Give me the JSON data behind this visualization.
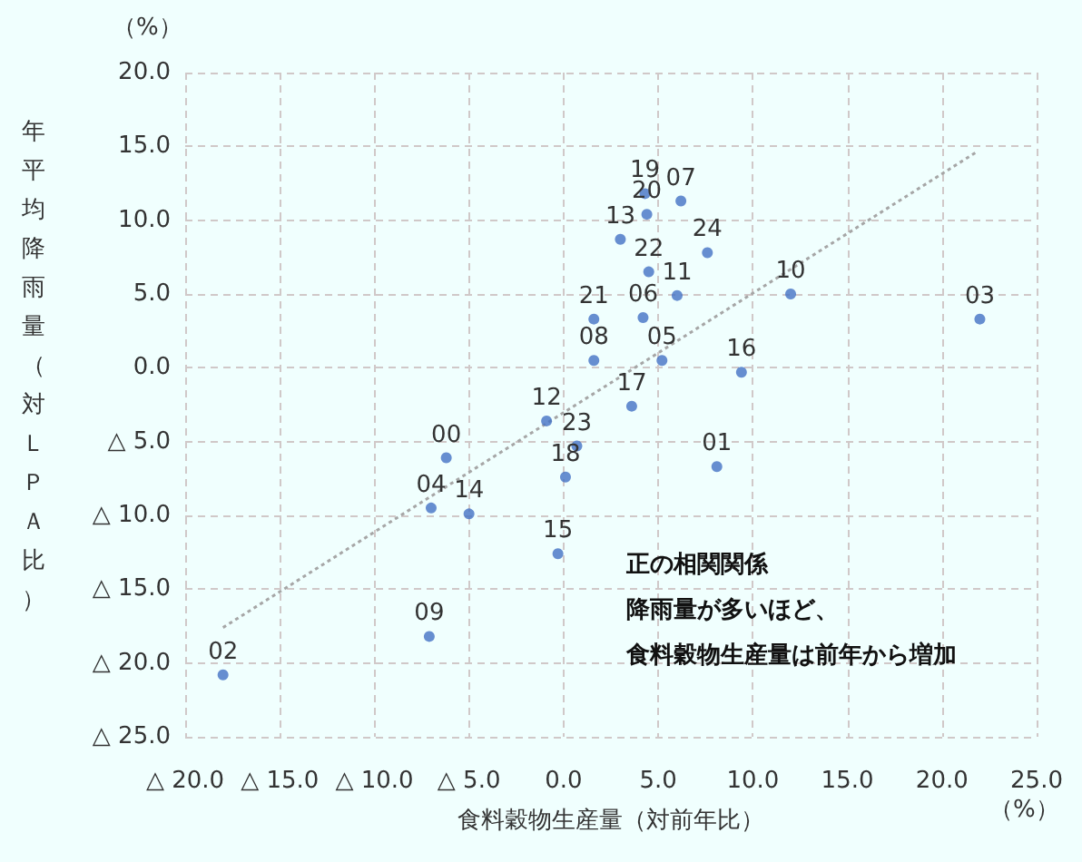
{
  "chart_data": {
    "type": "scatter",
    "xlabel": "食料穀物生産量（対前年比）",
    "ylabel": "年平均降雨量（対ＬＰＡ比）",
    "annotations": [
      "（%）",
      "（%）",
      "正の相関関係",
      "降雨量が多いほど、",
      "食料穀物生産量は前年から増加",
      {
        "text": "19",
        "x": 4.3,
        "y": 11.8
      },
      {
        "text": "20",
        "x": 4.4,
        "y": 10.4
      },
      {
        "text": "07",
        "x": 6.2,
        "y": 11.3
      },
      {
        "text": "13",
        "x": 3.0,
        "y": 8.7
      },
      {
        "text": "24",
        "x": 7.6,
        "y": 7.8
      },
      {
        "text": "22",
        "x": 4.5,
        "y": 6.5
      },
      {
        "text": "11",
        "x": 6.0,
        "y": 4.9
      },
      {
        "text": "10",
        "x": 12.0,
        "y": 5.0
      },
      {
        "text": "03",
        "x": 22.0,
        "y": 3.3
      },
      {
        "text": "21",
        "x": 1.6,
        "y": 3.3
      },
      {
        "text": "06",
        "x": 4.2,
        "y": 3.4
      },
      {
        "text": "08",
        "x": 1.6,
        "y": 0.5
      },
      {
        "text": "05",
        "x": 5.2,
        "y": 0.5
      },
      {
        "text": "16",
        "x": 9.4,
        "y": -0.3
      },
      {
        "text": "17",
        "x": 3.6,
        "y": -2.6
      },
      {
        "text": "01",
        "x": 8.1,
        "y": -6.7
      },
      {
        "text": "23",
        "x": 0.7,
        "y": -5.3
      },
      {
        "text": "18",
        "x": 0.1,
        "y": -7.4
      },
      {
        "text": "15",
        "x": -0.3,
        "y": -12.6
      },
      {
        "text": "12",
        "x": -0.9,
        "y": -3.6
      },
      {
        "text": "00",
        "x": -6.2,
        "y": -6.1
      },
      {
        "text": "04",
        "x": -7.0,
        "y": -9.5
      },
      {
        "text": "14",
        "x": -5.0,
        "y": -9.9
      },
      {
        "text": "09",
        "x": -7.1,
        "y": -18.2
      },
      {
        "text": "02",
        "x": -18.0,
        "y": -20.8
      }
    ],
    "xlim": [
      -20,
      25
    ],
    "xticks": [
      {
        "value": -20,
        "label": "△ 20.0"
      },
      {
        "value": -15,
        "label": "△ 15.0"
      },
      {
        "value": -10,
        "label": "△ 10.0"
      },
      {
        "value": -5,
        "label": "△ 5.0"
      },
      {
        "value": 0,
        "label": "0.0"
      },
      {
        "value": 5,
        "label": "5.0"
      },
      {
        "value": 10,
        "label": "10.0"
      },
      {
        "value": 15,
        "label": "15.0"
      },
      {
        "value": 20,
        "label": "20.0"
      },
      {
        "value": 25,
        "label": "25.0"
      }
    ],
    "ylim": [
      -25,
      20
    ],
    "yticks": [
      {
        "value": -25,
        "label": "△ 25.0"
      },
      {
        "value": -20,
        "label": "△ 20.0"
      },
      {
        "value": -15,
        "label": "△ 15.0"
      },
      {
        "value": -10,
        "label": "△ 10.0"
      },
      {
        "value": -5,
        "label": "△ 5.0"
      },
      {
        "value": 0,
        "label": "0.0"
      },
      {
        "value": 5,
        "label": "5.0"
      },
      {
        "value": 10,
        "label": "10.0"
      },
      {
        "value": 15,
        "label": "15.0"
      },
      {
        "value": 20,
        "label": "20.0"
      }
    ],
    "grid": true,
    "marker": "circle",
    "series": [
      {
        "color": "#4472c4",
        "x": [
          4.3,
          4.4,
          6.2,
          3.0,
          7.6,
          4.5,
          6.0,
          12.0,
          22.0,
          1.6,
          4.2,
          1.6,
          5.2,
          9.4,
          3.6,
          8.1,
          0.7,
          0.1,
          -0.3,
          -0.9,
          -6.2,
          -7.0,
          -5.0,
          -7.1,
          -18.0
        ],
        "values": [
          11.8,
          10.4,
          11.3,
          8.7,
          7.8,
          6.5,
          4.9,
          5.0,
          3.3,
          3.3,
          3.4,
          0.5,
          0.5,
          -0.3,
          -2.6,
          -6.7,
          -5.3,
          -7.4,
          -12.6,
          -3.6,
          -6.1,
          -9.5,
          -9.9,
          -18.2,
          -20.8
        ]
      },
      {
        "type": "line",
        "color": "#a6a6a6",
        "line_style": "dotted",
        "marker": "none",
        "x": [
          -18.0,
          21.8
        ],
        "values": [
          -17.6,
          14.6
        ]
      }
    ]
  }
}
